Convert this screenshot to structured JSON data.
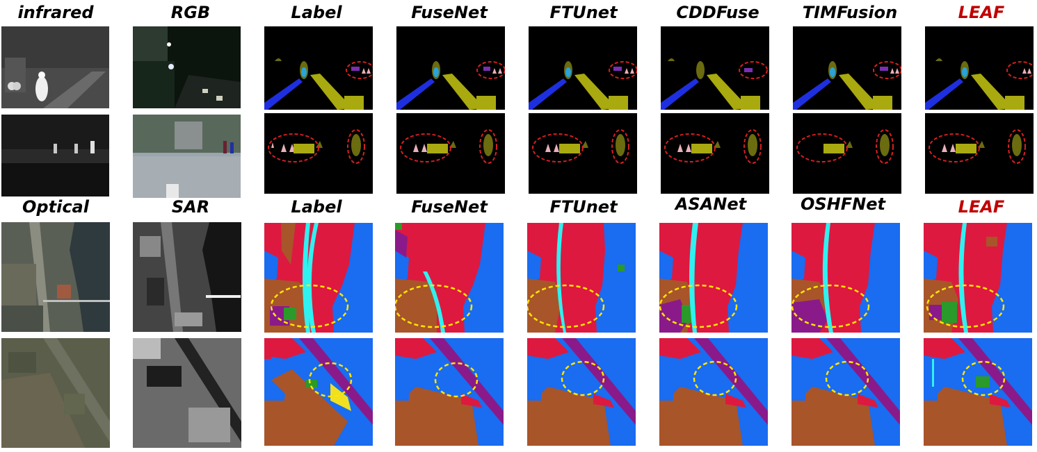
{
  "rows": [
    {
      "headers": [
        "infrared",
        "RGB",
        "Label",
        "FuseNet",
        "FTUnet",
        "CDDFuse",
        "TIMFusion",
        "LEAF"
      ]
    },
    {
      "headers": [
        "Optical",
        "SAR",
        "Label",
        "FuseNet",
        "FTUnet",
        "ASANet",
        "OSHFNet",
        "LEAF"
      ]
    }
  ],
  "highlight_method": "LEAF",
  "colors": {
    "header_highlight": "#c00000",
    "seg_background_dark": "#000000",
    "seg_person": "#6b6b10",
    "seg_car_blue": "#1e2fe0",
    "seg_road_olive": "#a9a910",
    "seg_cyan": "#29a3d9",
    "seg_pink": "#e8b0b8",
    "seg_purple": "#7b2fb0",
    "annotation_red": "#d62020",
    "land_red": "#dd1940",
    "land_blue": "#1a6cf0",
    "land_brown": "#a8552a",
    "land_cyan": "#30f0f0",
    "land_green": "#2a9a2a",
    "land_purple": "#8a1a8a",
    "land_yellow": "#f0e020",
    "annotation_yellow": "#ffe600"
  }
}
